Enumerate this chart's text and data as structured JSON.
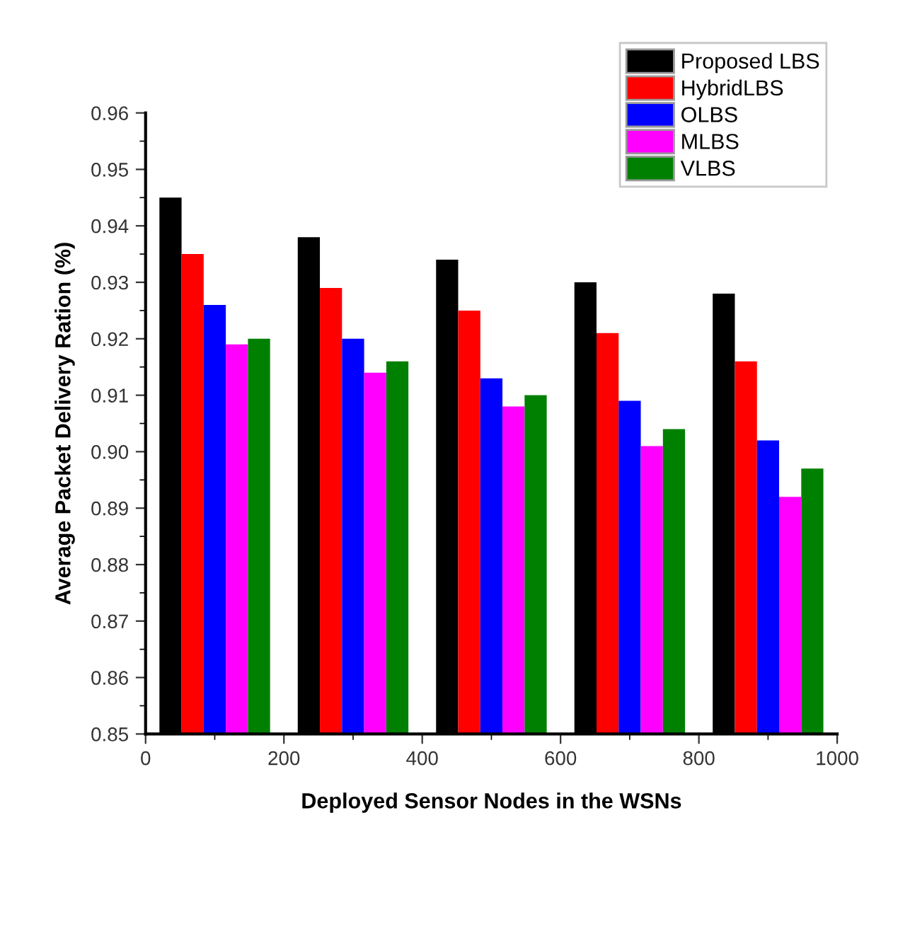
{
  "chart_data": {
    "type": "bar",
    "xlabel": "Deployed Sensor Nodes in the WSNs",
    "ylabel": "Average Packet Delivery Ration (%)",
    "x": [
      100,
      300,
      500,
      700,
      900
    ],
    "series": [
      {
        "name": "Proposed LBS",
        "color": "#000000",
        "values": [
          0.945,
          0.938,
          0.934,
          0.93,
          0.928
        ]
      },
      {
        "name": "HybridLBS",
        "color": "#ff0000",
        "values": [
          0.935,
          0.929,
          0.925,
          0.921,
          0.916
        ]
      },
      {
        "name": "OLBS",
        "color": "#0000ff",
        "values": [
          0.926,
          0.92,
          0.913,
          0.909,
          0.902
        ]
      },
      {
        "name": "MLBS",
        "color": "#ff00ff",
        "values": [
          0.919,
          0.914,
          0.908,
          0.901,
          0.892
        ]
      },
      {
        "name": "VLBS",
        "color": "#008000",
        "values": [
          0.92,
          0.916,
          0.91,
          0.904,
          0.897
        ]
      }
    ],
    "xlim": [
      0,
      1000
    ],
    "xticks": [
      0,
      200,
      400,
      600,
      800,
      1000
    ],
    "ylim": [
      0.85,
      0.96
    ],
    "yticks": [
      {
        "value": 0.85,
        "label": "0.85"
      },
      {
        "value": 0.86,
        "label": "0.86"
      },
      {
        "value": 0.87,
        "label": "0.87"
      },
      {
        "value": 0.88,
        "label": "0.88"
      },
      {
        "value": 0.89,
        "label": "0.89"
      },
      {
        "value": 0.9,
        "label": "0.90"
      },
      {
        "value": 0.91,
        "label": "0.91"
      },
      {
        "value": 0.92,
        "label": "0.92"
      },
      {
        "value": 0.93,
        "label": "0.93"
      },
      {
        "value": 0.94,
        "label": "0.94"
      },
      {
        "value": 0.95,
        "label": "0.95"
      },
      {
        "value": 0.96,
        "label": "0.96"
      }
    ],
    "grid": false,
    "legend": "top right"
  }
}
